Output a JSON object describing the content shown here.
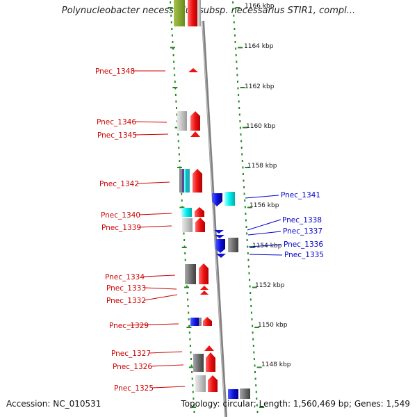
{
  "title": "Polynucleobacter necessarius subsp. necessarius STIR1, compl...",
  "footer": {
    "accession": "Accession: NC_010531",
    "summary": "Topology: circular; Length: 1,560,469 bp; Genes: 1,549"
  },
  "ticks": [
    "1166 kbp",
    "1164 kbp",
    "1162 kbp",
    "1160 kbp",
    "1158 kbp",
    "1156 kbp",
    "1154 kbp",
    "1152 kbp",
    "1150 kbp",
    "1148 kbp"
  ],
  "left_labels": [
    "Pnec_1348",
    "Pnec_1346",
    "Pnec_1345",
    "Pnec_1342",
    "Pnec_1340",
    "Pnec_1339",
    "Pnec_1334",
    "Pnec_1333",
    "Pnec_1332",
    "Pnec_1329",
    "Pnec_1327",
    "Pnec_1326",
    "Pnec_1325"
  ],
  "right_labels": [
    "Pnec_1341",
    "Pnec_1338",
    "Pnec_1337",
    "Pnec_1336",
    "Pnec_1335"
  ],
  "colors": {
    "forward": "#ee1111",
    "reverse": "#1111dd",
    "left_label": "#cc0000",
    "right_label": "#0000cc",
    "backbone": "#808080",
    "tick": "#228822"
  }
}
